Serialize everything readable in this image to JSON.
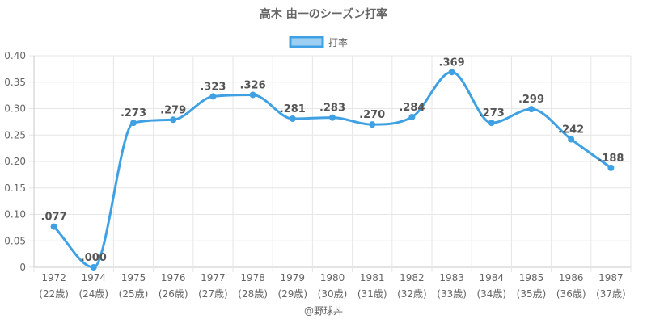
{
  "chart_data": {
    "type": "line",
    "title": "高木 由一のシーズン打率",
    "series": [
      {
        "name": "打率",
        "values": [
          0.077,
          0.0,
          0.273,
          0.279,
          0.323,
          0.326,
          0.281,
          0.283,
          0.27,
          0.284,
          0.369,
          0.273,
          0.299,
          0.242,
          0.188
        ]
      }
    ],
    "categories": [
      "1972",
      "1974",
      "1975",
      "1976",
      "1977",
      "1978",
      "1979",
      "1980",
      "1981",
      "1982",
      "1983",
      "1984",
      "1985",
      "1986",
      "1987"
    ],
    "category_sublabels": [
      "(22歳)",
      "(24歳)",
      "(25歳)",
      "(26歳)",
      "(27歳)",
      "(28歳)",
      "(29歳)",
      "(30歳)",
      "(31歳)",
      "(32歳)",
      "(33歳)",
      "(34歳)",
      "(35歳)",
      "(36歳)",
      "(37歳)"
    ],
    "data_labels": [
      ".077",
      ".000",
      ".273",
      ".279",
      ".323",
      ".326",
      ".281",
      ".283",
      ".270",
      ".284",
      ".369",
      ".273",
      ".299",
      ".242",
      ".188"
    ],
    "ylim": [
      0,
      0.4
    ],
    "yticks": [
      0,
      0.05,
      0.1,
      0.15,
      0.2,
      0.25,
      0.3,
      0.35,
      0.4
    ],
    "ytick_labels": [
      "0",
      "0.05",
      "0.10",
      "0.15",
      "0.20",
      "0.25",
      "0.30",
      "0.35",
      "0.40"
    ],
    "xlabel": "",
    "ylabel": "",
    "grid": true,
    "legend_position": "top-center",
    "colors": {
      "line": "#3fa1e3",
      "legend_fill": "#9ccff2",
      "grid": "#e6e6e6",
      "axis": "#c8c8c8"
    },
    "credit": "@野球丼"
  }
}
